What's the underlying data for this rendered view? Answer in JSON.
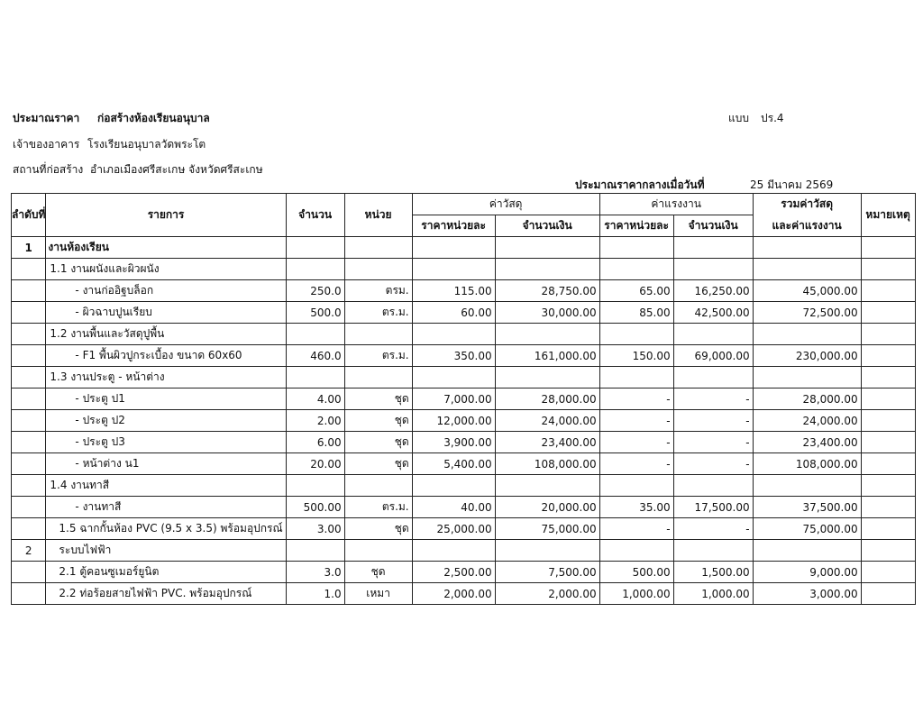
{
  "header": {
    "title_label": "ประมาณราคา",
    "title_value": "ก่อสร้างห้องเรียนอนุบาล",
    "form_label": "แบบ",
    "form_value": "ปร.4",
    "owner_label": "เจ้าของอาคาร",
    "owner_value": "โรงเรียนอนุบาลวัดพระโต",
    "site_label": "สถานที่ก่อสร้าง",
    "site_value": "อำเภอเมืองศรีสะเกษ  จังหวัดศรีสะเกษ",
    "date_label": "ประมาณราคากลางเมื่อวันที่",
    "date_value": "25 มีนาคม 2569"
  },
  "columns": {
    "no": "ลำดับที่",
    "item": "รายการ",
    "qty": "จำนวน",
    "unit": "หน่วย",
    "material": "ค่าวัสดุ",
    "labor": "ค่าแรงงาน",
    "unit_price": "ราคาหน่วยละ",
    "amount": "จำนวนเงิน",
    "total_1": "รวมค่าวัสดุ",
    "total_2": "และค่าแรงงาน",
    "remark": "หมายเหตุ"
  },
  "rows": [
    {
      "no": "1",
      "item": "งานห้องเรียน",
      "level": "section",
      "cells": [
        "",
        "",
        "",
        "",
        "",
        "",
        ""
      ]
    },
    {
      "no": "",
      "item": "1.1  งานผนังและผิวผนัง",
      "level": "group",
      "cells": [
        "",
        "",
        "",
        "",
        "",
        "",
        ""
      ]
    },
    {
      "no": "",
      "item": "- งานก่ออิฐบล็อก",
      "level": "item",
      "cells": [
        "250.0",
        "ตรม.",
        "115.00",
        "28,750.00",
        "65.00",
        "16,250.00",
        "45,000.00"
      ]
    },
    {
      "no": "",
      "item": "- ผิวฉาบปูนเรียบ",
      "level": "item",
      "cells": [
        "500.0",
        "ตร.ม.",
        "60.00",
        "30,000.00",
        "85.00",
        "42,500.00",
        "72,500.00"
      ]
    },
    {
      "no": "",
      "item": "1.2  งานพื้นและวัสดุปูพื้น",
      "level": "group",
      "cells": [
        "",
        "",
        "",
        "",
        "",
        "",
        ""
      ]
    },
    {
      "no": "",
      "item": "- F1 พื้นผิวปูกระเบื้อง ขนาด 60x60",
      "level": "item",
      "cells": [
        "460.0",
        "ตร.ม.",
        "350.00",
        "161,000.00",
        "150.00",
        "69,000.00",
        "230,000.00"
      ]
    },
    {
      "no": "",
      "item": "1.3  งานประตู - หน้าต่าง",
      "level": "group",
      "cells": [
        "",
        "",
        "",
        "",
        "",
        "",
        ""
      ]
    },
    {
      "no": "",
      "item": "- ประตู ป1",
      "level": "item",
      "cells": [
        "4.00",
        "ชุด",
        "7,000.00",
        "28,000.00",
        "-",
        "-",
        "28,000.00"
      ]
    },
    {
      "no": "",
      "item": "- ประตู ป2",
      "level": "item",
      "cells": [
        "2.00",
        "ชุด",
        "12,000.00",
        "24,000.00",
        "-",
        "-",
        "24,000.00"
      ]
    },
    {
      "no": "",
      "item": "- ประตู ป3",
      "level": "item",
      "cells": [
        "6.00",
        "ชุด",
        "3,900.00",
        "23,400.00",
        "-",
        "-",
        "23,400.00"
      ]
    },
    {
      "no": "",
      "item": "- หน้าต่าง น1",
      "level": "item",
      "cells": [
        "20.00",
        "ชุด",
        "5,400.00",
        "108,000.00",
        "-",
        "-",
        "108,000.00"
      ]
    },
    {
      "no": "",
      "item": "1.4  งานทาสี",
      "level": "group",
      "cells": [
        "",
        "",
        "",
        "",
        "",
        "",
        ""
      ]
    },
    {
      "no": "",
      "item": "- งานทาสี",
      "level": "item",
      "cells": [
        "500.00",
        "ตร.ม.",
        "40.00",
        "20,000.00",
        "35.00",
        "17,500.00",
        "37,500.00"
      ]
    },
    {
      "no": "",
      "item": "1.5 ฉากกั้นห้อง PVC (9.5 x 3.5) พร้อมอุปกรณ์",
      "level": "subitem",
      "cells": [
        "3.00",
        "ชุด",
        "25,000.00",
        "75,000.00",
        "-",
        "-",
        "75,000.00"
      ]
    },
    {
      "no": "2",
      "item": "ระบบไฟฟ้า",
      "level": "subsection",
      "cells": [
        "",
        "",
        "",
        "",
        "",
        "",
        ""
      ]
    },
    {
      "no": "",
      "item": "2.1    ตู้คอนซูเมอร์ยูนิต",
      "level": "subitem",
      "cells": [
        "3.0",
        "ชุด",
        "2,500.00",
        "7,500.00",
        "500.00",
        "1,500.00",
        "9,000.00"
      ]
    },
    {
      "no": "",
      "item": "2.2  ท่อร้อยสายไฟฟ้า PVC. พร้อมอุปกรณ์",
      "level": "subitem",
      "cells": [
        "1.0",
        "เหมา",
        "2,000.00",
        "2,000.00",
        "1,000.00",
        "1,000.00",
        "3,000.00"
      ]
    }
  ]
}
